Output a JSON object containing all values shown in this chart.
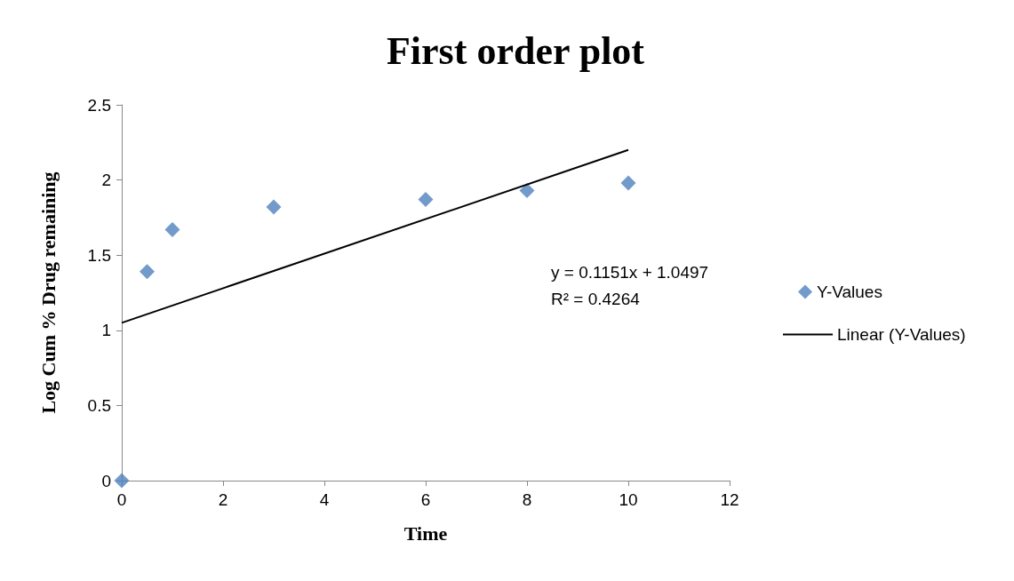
{
  "chart_data": {
    "type": "scatter",
    "title": "First order plot",
    "xlabel": "Time",
    "ylabel": "Log Cum % Drug remaining",
    "x": [
      0,
      0.5,
      1,
      3,
      6,
      8,
      10
    ],
    "series": [
      {
        "name": "Y-Values",
        "color": "#4f81bd",
        "marker": "diamond",
        "values": [
          0,
          1.39,
          1.67,
          1.82,
          1.87,
          1.93,
          1.98
        ]
      },
      {
        "name": "Linear (Y-Values)",
        "type": "line",
        "color": "#000000",
        "marker": "none",
        "line_style": "solid",
        "x": [
          0,
          10
        ],
        "values": [
          1.05,
          2.2
        ]
      }
    ],
    "annotations": [
      "y = 0.1151x + 1.0497",
      "R² = 0.4264"
    ],
    "xlim": [
      0,
      12
    ],
    "xticks": [
      0,
      2,
      4,
      6,
      8,
      10,
      12
    ],
    "ylim": [
      0,
      2.5
    ],
    "yticks": [
      0,
      0.5,
      1,
      1.5,
      2,
      2.5
    ],
    "grid": false,
    "legend": "right"
  }
}
